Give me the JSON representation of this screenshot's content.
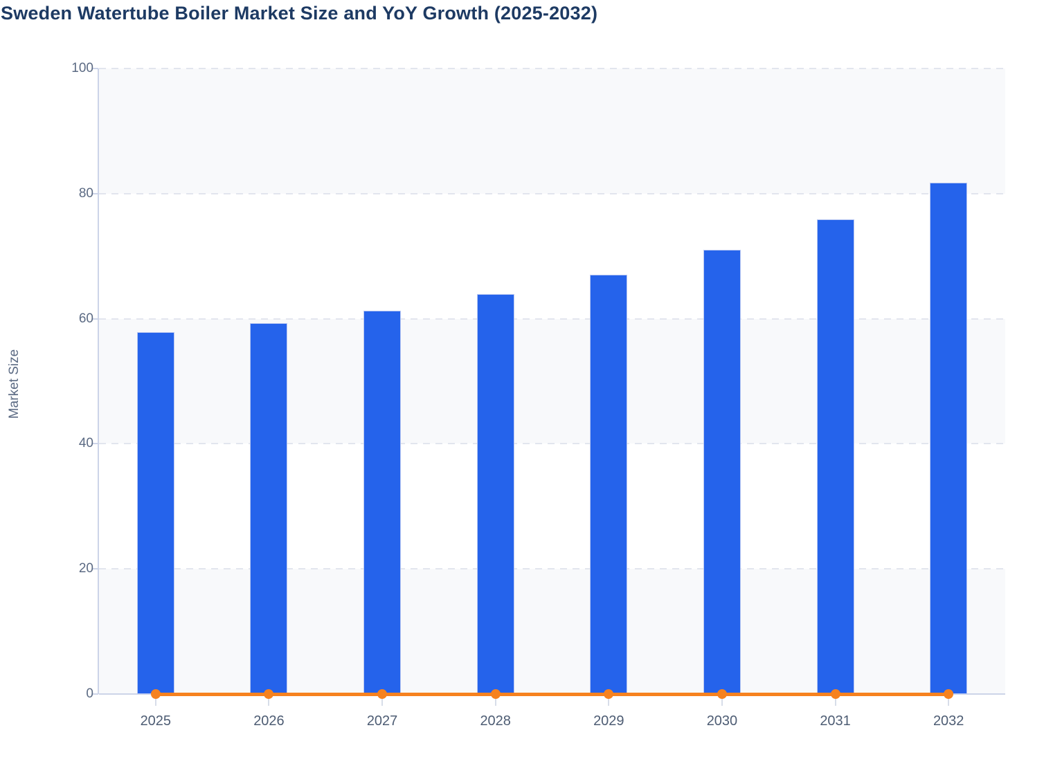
{
  "title": "Sweden Watertube Boiler Market Size and YoY Growth (2025-2032)",
  "chart_data": {
    "type": "bar",
    "title": "Sweden Watertube Boiler Market Size and YoY Growth (2025-2032)",
    "categories": [
      "2025",
      "2026",
      "2027",
      "2028",
      "2029",
      "2030",
      "2031",
      "2032"
    ],
    "series": [
      {
        "name": "Market Size",
        "type": "bar",
        "color": "#2563eb",
        "values": [
          57.9,
          59.3,
          61.3,
          63.9,
          67,
          71,
          75.9,
          81.8
        ]
      },
      {
        "name": "YoY Growth",
        "type": "line",
        "color": "#f6821f",
        "values": [
          0,
          0,
          0,
          0,
          0,
          0,
          0,
          0
        ]
      }
    ],
    "xlabel": "",
    "ylabel": "Market Size",
    "ylim": [
      0,
      100
    ],
    "yticks": [
      0,
      20,
      40,
      60,
      80,
      100
    ],
    "grid": "horizontal-dashed",
    "plot_band_colors": [
      "#f8f9fb",
      "#ffffff"
    ],
    "legend_position": "none"
  }
}
